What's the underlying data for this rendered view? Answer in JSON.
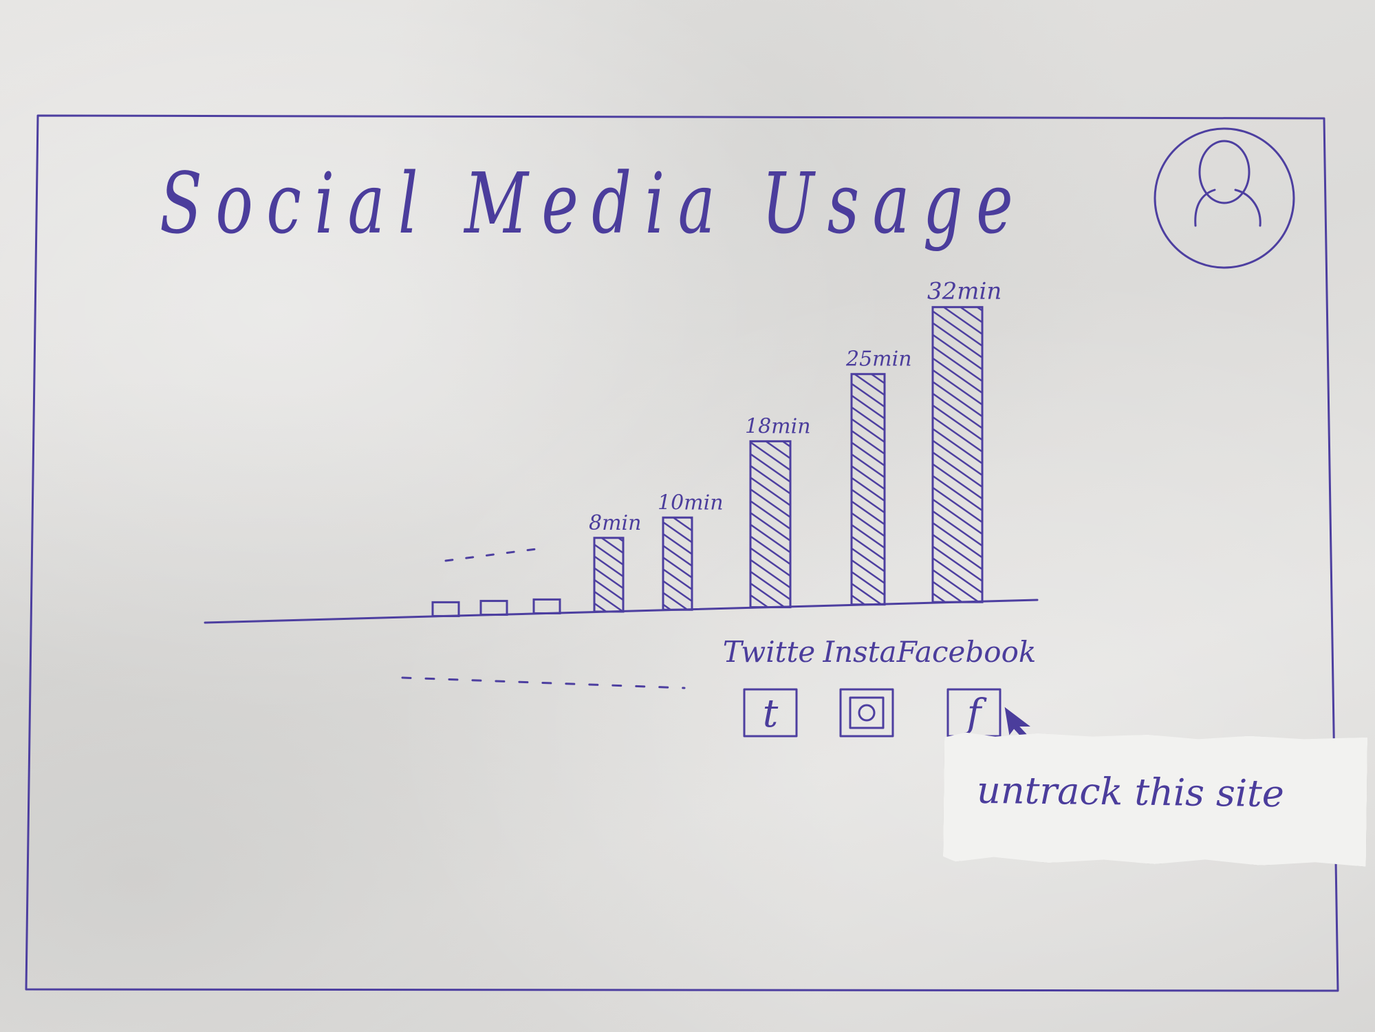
{
  "page": {
    "title": "Social Media Usage"
  },
  "header": {
    "profile_icon": "user-icon"
  },
  "chart_data": {
    "type": "bar",
    "categories": [
      "",
      "",
      "",
      "",
      "",
      "Twitte",
      "Insta",
      "Facebook"
    ],
    "values": [
      1.5,
      1.5,
      1.5,
      8,
      10,
      18,
      25,
      32
    ],
    "data_labels": [
      "",
      "",
      "",
      "8min",
      "10min",
      "18min",
      "25min",
      "32min"
    ],
    "title": "Social Media Usage",
    "xlabel": "",
    "ylabel": "",
    "grid": false,
    "colors": {
      "ink": "#4d3fa0",
      "bar_fill": "#5545a8"
    }
  },
  "sites": [
    {
      "name": "Twitte",
      "icon": "twitter-icon",
      "glyph": "t"
    },
    {
      "name": "Insta",
      "icon": "instagram-icon",
      "glyph": ""
    },
    {
      "name": "Facebook",
      "icon": "facebook-icon",
      "glyph": "f"
    }
  ],
  "context_menu": {
    "untrack_label": "untrack this site"
  }
}
